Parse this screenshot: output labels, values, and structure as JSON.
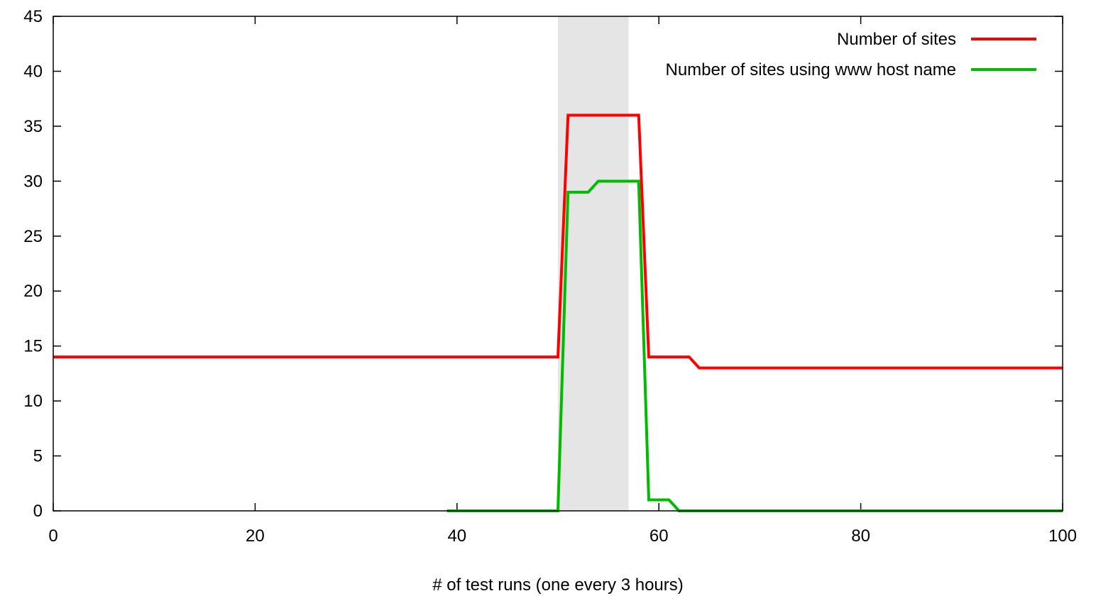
{
  "chart_data": {
    "type": "line",
    "title": "",
    "xlabel": "# of test runs (one every 3 hours)",
    "ylabel": "",
    "xlim": [
      0,
      100
    ],
    "ylim": [
      0,
      45
    ],
    "xticks": [
      0,
      20,
      40,
      60,
      80,
      100
    ],
    "yticks": [
      0,
      5,
      10,
      15,
      20,
      25,
      30,
      35,
      40,
      45
    ],
    "grid": false,
    "legend_position": "top-right",
    "highlight_band": {
      "x_start": 50,
      "x_end": 57,
      "color": "#e5e5e5"
    },
    "series": [
      {
        "name": "Number of sites",
        "color": "#ff0000",
        "points": [
          [
            0,
            14
          ],
          [
            50,
            14
          ],
          [
            51,
            36
          ],
          [
            52,
            36
          ],
          [
            53,
            36
          ],
          [
            54,
            36
          ],
          [
            55,
            36
          ],
          [
            56,
            36
          ],
          [
            57,
            36
          ],
          [
            58,
            36
          ],
          [
            59,
            14
          ],
          [
            60,
            14
          ],
          [
            61,
            14
          ],
          [
            62,
            14
          ],
          [
            63,
            14
          ],
          [
            64,
            13
          ],
          [
            70,
            13
          ],
          [
            80,
            13
          ],
          [
            90,
            13
          ],
          [
            100,
            13
          ]
        ]
      },
      {
        "name": "Number of sites using www host name",
        "color": "#00bb00",
        "points": [
          [
            39,
            0
          ],
          [
            40,
            0
          ],
          [
            45,
            0
          ],
          [
            50,
            0
          ],
          [
            51,
            29
          ],
          [
            52,
            29
          ],
          [
            53,
            29
          ],
          [
            54,
            30
          ],
          [
            55,
            30
          ],
          [
            56,
            30
          ],
          [
            57,
            30
          ],
          [
            58,
            30
          ],
          [
            59,
            1
          ],
          [
            60,
            1
          ],
          [
            61,
            1
          ],
          [
            62,
            0
          ],
          [
            70,
            0
          ],
          [
            80,
            0
          ],
          [
            90,
            0
          ],
          [
            100,
            0
          ]
        ]
      }
    ]
  }
}
